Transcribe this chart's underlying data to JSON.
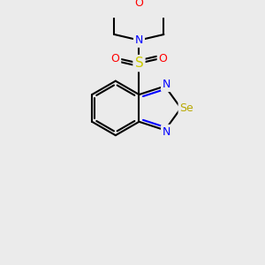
{
  "background_color": "#ebebeb",
  "bond_color": "#000000",
  "atom_colors": {
    "O": "#ff0000",
    "N": "#0000ff",
    "S": "#cccc00",
    "Se": "#b8a800"
  },
  "figsize": [
    3.0,
    3.0
  ],
  "dpi": 100
}
